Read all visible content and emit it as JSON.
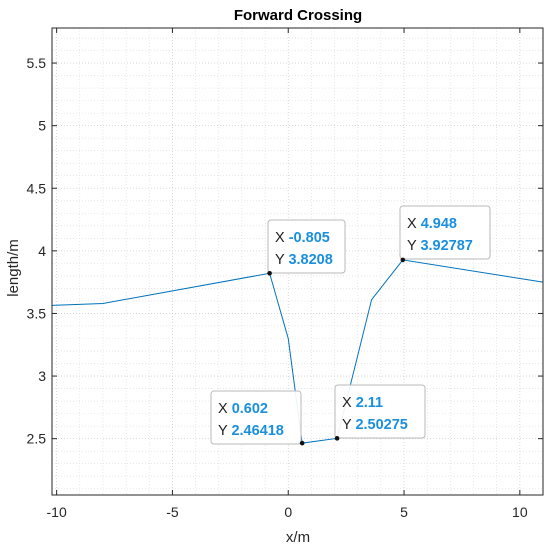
{
  "chart_data": {
    "type": "line",
    "title": "Forward Crossing",
    "xlabel": "x/m",
    "ylabel": "length/m",
    "xlim": [
      -10.2,
      11
    ],
    "ylim": [
      2.05,
      5.78
    ],
    "xticks": [
      -10,
      -5,
      0,
      5,
      10
    ],
    "yticks": [
      2.5,
      3,
      3.5,
      4,
      4.5,
      5,
      5.5
    ],
    "xtick_labels": [
      "-10",
      "-5",
      "0",
      "5",
      "10"
    ],
    "ytick_labels": [
      "2.5",
      "3",
      "3.5",
      "4",
      "4.5",
      "5",
      "5.5"
    ],
    "grid": true,
    "minor_grid": true,
    "series": [
      {
        "color": "#0072BD",
        "x": [
          -10.2,
          -8,
          -0.805,
          0,
          0.602,
          2.11,
          3.6,
          4.948,
          11
        ],
        "y": [
          3.565,
          3.58,
          3.8208,
          3.3,
          2.46418,
          2.50275,
          3.61,
          3.92787,
          3.75
        ]
      }
    ],
    "annotations": [
      {
        "x_label": "X",
        "x_value": "-0.805",
        "y_label": "Y",
        "y_value": "3.8208",
        "x": -0.805,
        "y": 3.8208
      },
      {
        "x_label": "X",
        "x_value": "0.602",
        "y_label": "Y",
        "y_value": "2.46418",
        "x": 0.602,
        "y": 2.46418
      },
      {
        "x_label": "X",
        "x_value": "2.11",
        "y_label": "Y",
        "y_value": "2.50275",
        "x": 2.11,
        "y": 2.50275
      },
      {
        "x_label": "X",
        "x_value": "4.948",
        "y_label": "Y",
        "y_value": "3.92787",
        "x": 4.948,
        "y": 3.92787
      }
    ],
    "value_color": "#1a8fdd"
  }
}
